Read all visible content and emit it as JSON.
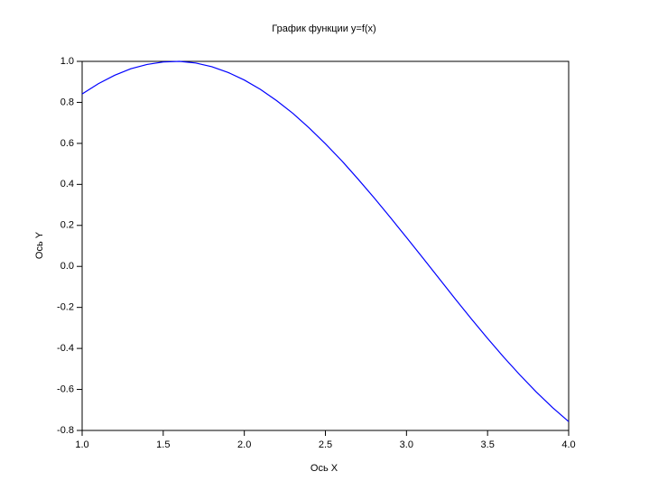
{
  "chart_data": {
    "type": "line",
    "title": "График функции y=f(x)",
    "x_label": "Ось X",
    "y_label": "Ось Y",
    "x": [
      1.0,
      1.1,
      1.2,
      1.3,
      1.4,
      1.5,
      1.6,
      1.7,
      1.8,
      1.9,
      2.0,
      2.1,
      2.2,
      2.3,
      2.4,
      2.5,
      2.6,
      2.7,
      2.8,
      2.9,
      3.0,
      3.1,
      3.2,
      3.3,
      3.4,
      3.5,
      3.6,
      3.7,
      3.8,
      3.9,
      4.0
    ],
    "series": [
      {
        "color": "#0000ff",
        "values": [
          0.841,
          0.891,
          0.932,
          0.964,
          0.985,
          0.997,
          1.0,
          0.992,
          0.974,
          0.946,
          0.909,
          0.863,
          0.808,
          0.746,
          0.675,
          0.598,
          0.516,
          0.427,
          0.335,
          0.239,
          0.141,
          0.042,
          -0.058,
          -0.158,
          -0.256,
          -0.351,
          -0.443,
          -0.53,
          -0.612,
          -0.688,
          -0.757
        ]
      }
    ],
    "xlim": [
      1,
      4
    ],
    "xticks": [
      {
        "value": 1,
        "label": "1.0"
      },
      1.5,
      {
        "value": 2,
        "label": "2.0"
      },
      2.5,
      {
        "value": 3,
        "label": "3.0"
      },
      3.5,
      {
        "value": 4,
        "label": "4.0"
      }
    ],
    "ylim": [
      -0.8,
      1
    ],
    "yticks": [
      -0.8,
      -0.6,
      -0.4,
      -0.2,
      {
        "value": 0,
        "label": "0.0"
      },
      0.2,
      0.4,
      0.6,
      0.8,
      {
        "value": 1,
        "label": "1.0"
      }
    ],
    "grid": false
  }
}
